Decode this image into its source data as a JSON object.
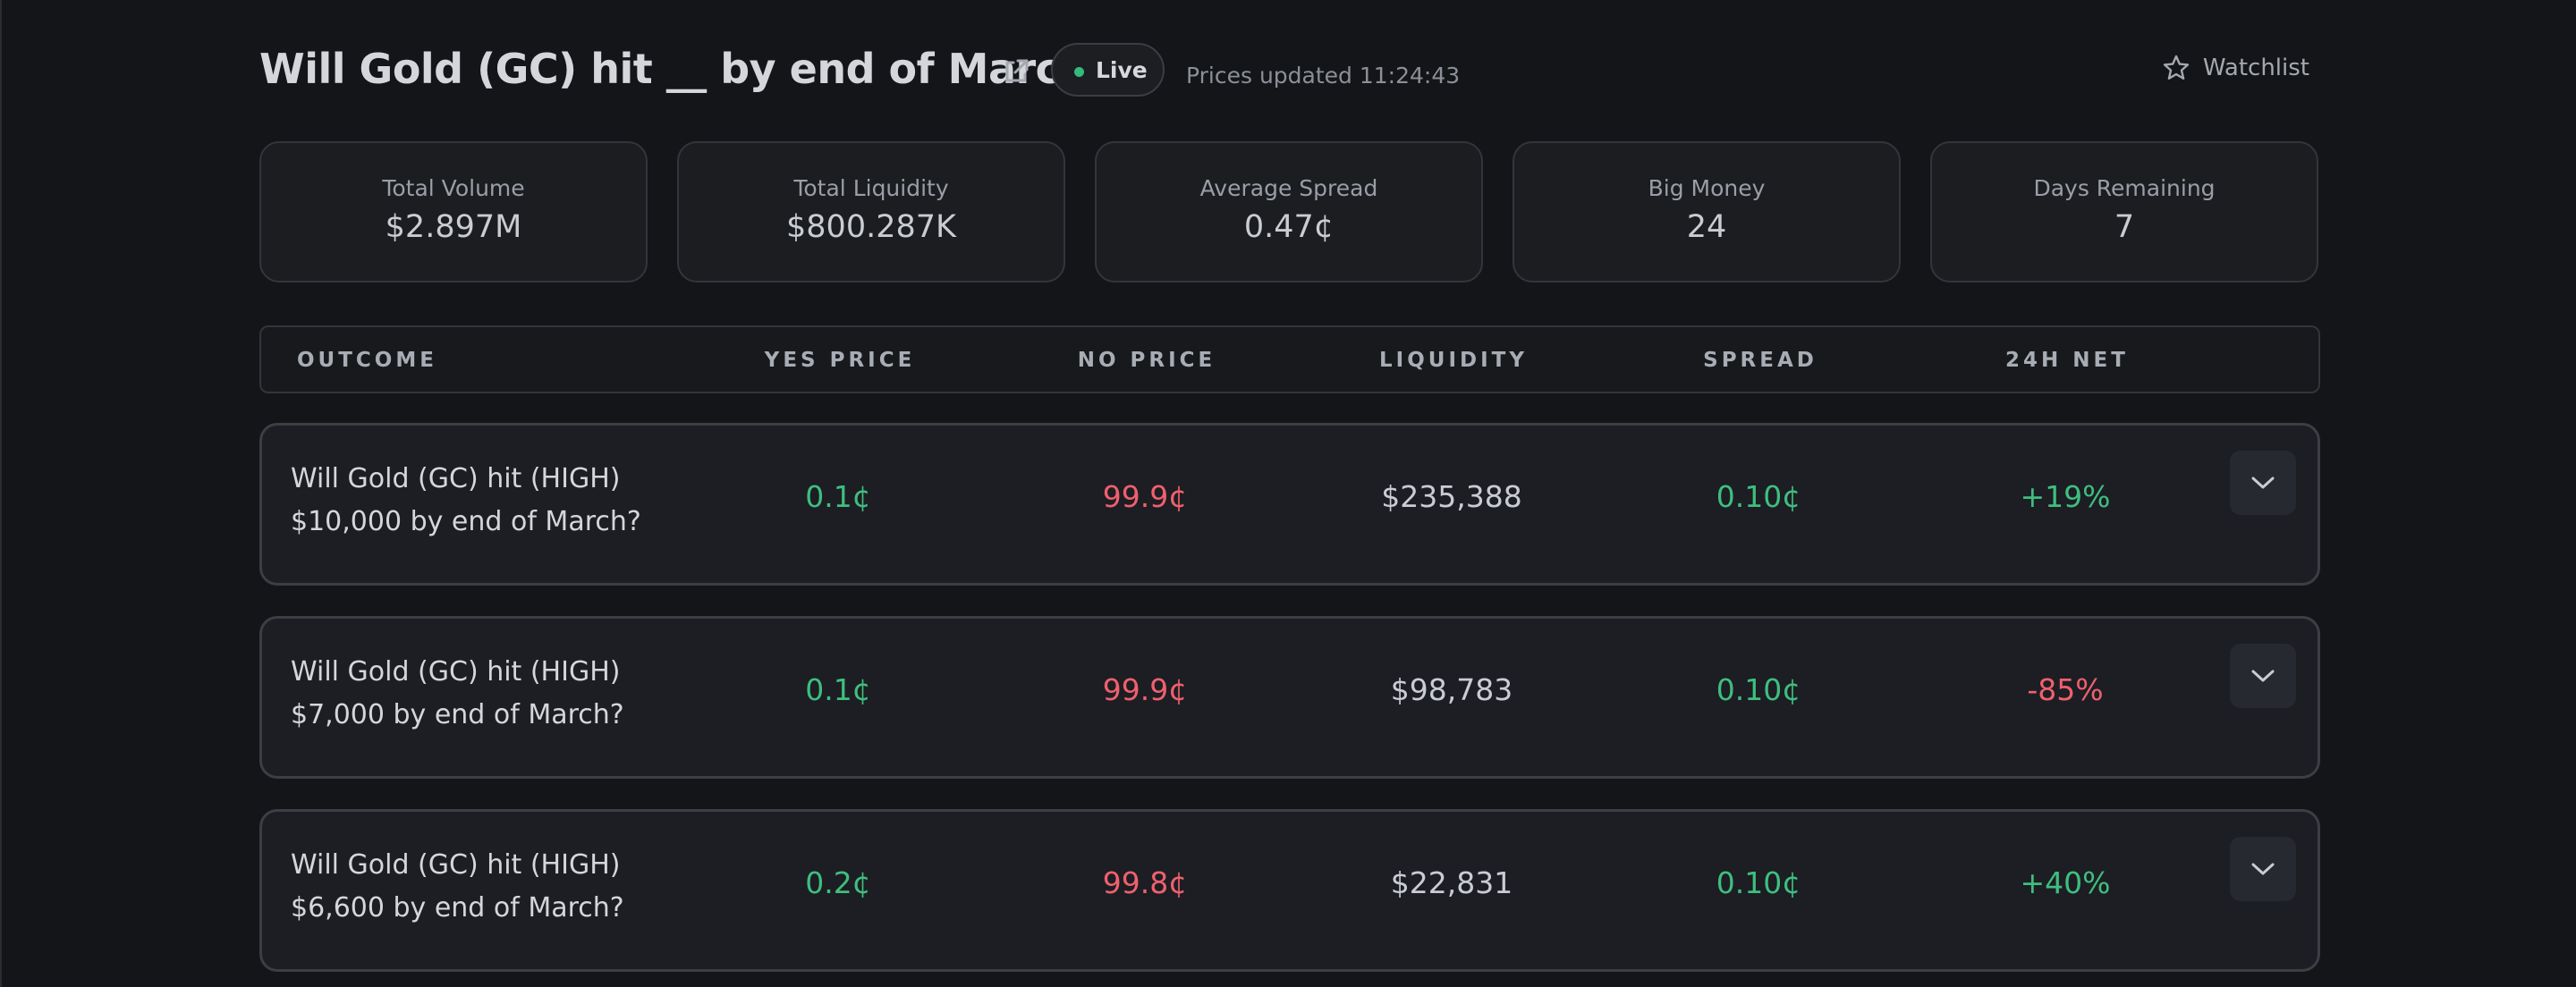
{
  "header": {
    "title": "Will Gold (GC) hit __ by end of March?",
    "external_link_icon": "external-link-icon",
    "live_label": "Live",
    "updated_text": "Prices updated 11:24:43",
    "watchlist_label": "Watchlist",
    "watchlist_icon": "star-icon"
  },
  "stats": [
    {
      "label": "Total Volume",
      "value": "$2.897M"
    },
    {
      "label": "Total Liquidity",
      "value": "$800.287K"
    },
    {
      "label": "Average Spread",
      "value": "0.47¢"
    },
    {
      "label": "Big Money",
      "value": "24"
    },
    {
      "label": "Days Remaining",
      "value": "7"
    }
  ],
  "table": {
    "columns": [
      "OUTCOME",
      "YES PRICE",
      "NO PRICE",
      "LIQUIDITY",
      "SPREAD",
      "24H NET"
    ],
    "rows": [
      {
        "outcome_line1": "Will Gold (GC) hit (HIGH)",
        "outcome_line2": "$10,000 by end of March?",
        "yes_price": "0.1¢",
        "no_price": "99.9¢",
        "liquidity": "$235,388",
        "spread": "0.10¢",
        "net_24h": "+19%",
        "net_direction": "up"
      },
      {
        "outcome_line1": "Will Gold (GC) hit (HIGH)",
        "outcome_line2": "$7,000 by end of March?",
        "yes_price": "0.1¢",
        "no_price": "99.9¢",
        "liquidity": "$98,783",
        "spread": "0.10¢",
        "net_24h": "-85%",
        "net_direction": "down"
      },
      {
        "outcome_line1": "Will Gold (GC) hit (HIGH)",
        "outcome_line2": "$6,600 by end of March?",
        "yes_price": "0.2¢",
        "no_price": "99.8¢",
        "liquidity": "$22,831",
        "spread": "0.10¢",
        "net_24h": "+40%",
        "net_direction": "up"
      }
    ]
  },
  "colors": {
    "background": "#141518",
    "positive": "#3fbe7f",
    "negative": "#f0606e",
    "live_dot": "#35b97e"
  }
}
